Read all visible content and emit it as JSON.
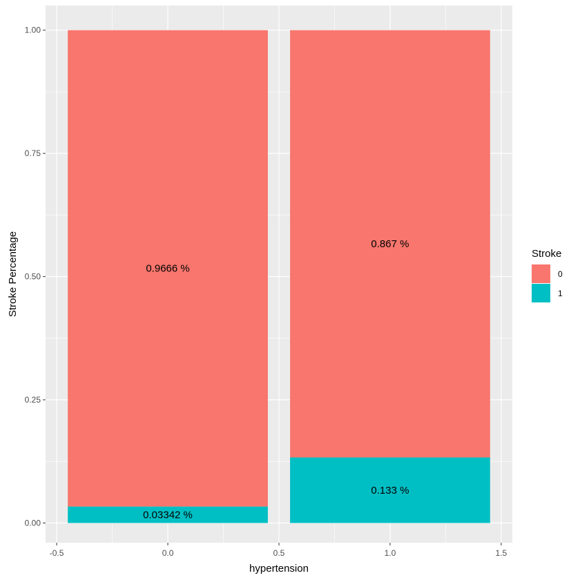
{
  "chart_data": {
    "type": "bar",
    "stacked": true,
    "x": [
      0,
      1
    ],
    "xlabel": "hypertension",
    "ylabel": "Stroke Percentage",
    "xlim": [
      -0.55,
      1.55
    ],
    "ylim": [
      -0.04,
      1.05
    ],
    "bar_width": 0.9,
    "x_ticks": [
      {
        "value": -0.5,
        "label": "-0.5"
      },
      {
        "value": 0.0,
        "label": "0.0"
      },
      {
        "value": 0.5,
        "label": "0.5"
      },
      {
        "value": 1.0,
        "label": "1.0"
      },
      {
        "value": 1.5,
        "label": "1.5"
      }
    ],
    "y_ticks": [
      {
        "value": 0.0,
        "label": "0.00"
      },
      {
        "value": 0.25,
        "label": "0.25"
      },
      {
        "value": 0.5,
        "label": "0.50"
      },
      {
        "value": 0.75,
        "label": "0.75"
      },
      {
        "value": 1.0,
        "label": "1.00"
      }
    ],
    "series": [
      {
        "name": "1",
        "color": "#00BFC4",
        "values": [
          0.03342,
          0.133
        ]
      },
      {
        "name": "0",
        "color": "#F8766D",
        "values": [
          0.9666,
          0.867
        ]
      }
    ],
    "labels": [
      {
        "x": 0,
        "y": 0.5167,
        "text": "0.9666 %"
      },
      {
        "x": 0,
        "y": 0.0167,
        "text": "0.03342 %"
      },
      {
        "x": 1,
        "y": 0.5665,
        "text": "0.867 %"
      },
      {
        "x": 1,
        "y": 0.0665,
        "text": "0.133 %"
      }
    ],
    "grid": true,
    "legend": {
      "title": "Stroke",
      "position": "right",
      "entries": [
        {
          "label": "0",
          "color": "#F8766D"
        },
        {
          "label": "1",
          "color": "#00BFC4"
        }
      ]
    }
  }
}
